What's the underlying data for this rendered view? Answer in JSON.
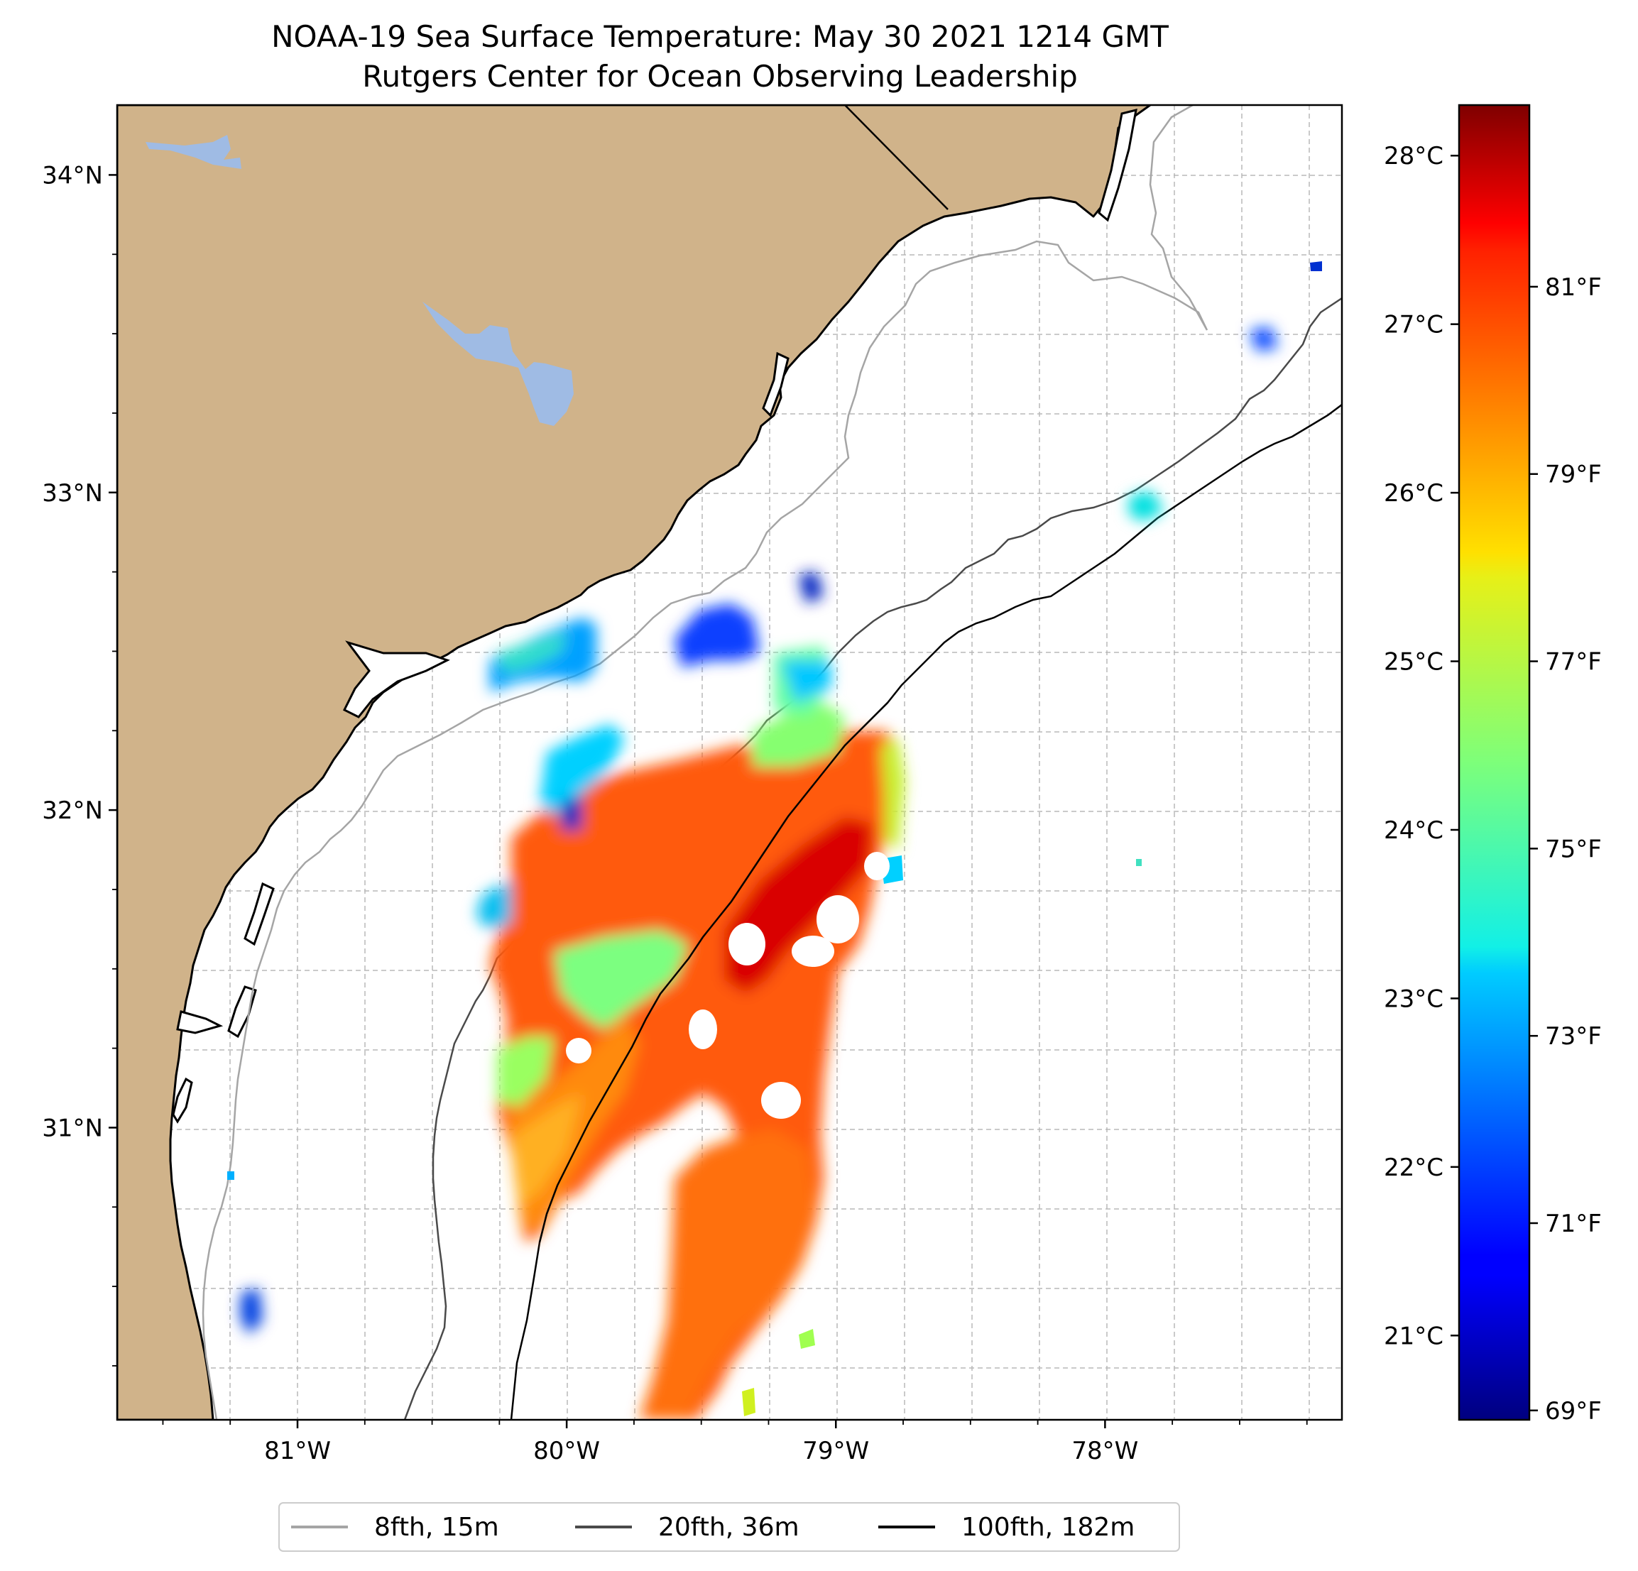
{
  "title": {
    "line1": "NOAA-19 Sea Surface Temperature: May 30 2021 1214 GMT",
    "line2": "Rutgers Center for Ocean Observing Leadership"
  },
  "map": {
    "lon_range": [
      -81.67,
      -77.12
    ],
    "lat_range": [
      30.08,
      34.22
    ],
    "lon_ticks": [
      {
        "value": -81,
        "label": "81°W"
      },
      {
        "value": -80,
        "label": "80°W"
      },
      {
        "value": -79,
        "label": "79°W"
      },
      {
        "value": -78,
        "label": "78°W"
      }
    ],
    "lat_ticks": [
      {
        "value": 31,
        "label": "31°N"
      },
      {
        "value": 32,
        "label": "32°N"
      },
      {
        "value": 33,
        "label": "33°N"
      },
      {
        "value": 34,
        "label": "34°N"
      }
    ],
    "gridlines": true,
    "colors": {
      "land": "#d0b38a",
      "water_body": "#9fbbe4",
      "coast": "#000000",
      "grid": "#b8b8b8"
    }
  },
  "colorbar": {
    "colormap": "jet",
    "range_c": [
      20.5,
      28.3
    ],
    "celsius_ticks": [
      {
        "value": 21,
        "label": "21°C"
      },
      {
        "value": 22,
        "label": "22°C"
      },
      {
        "value": 23,
        "label": "23°C"
      },
      {
        "value": 24,
        "label": "24°C"
      },
      {
        "value": 25,
        "label": "25°C"
      },
      {
        "value": 26,
        "label": "26°C"
      },
      {
        "value": 27,
        "label": "27°C"
      },
      {
        "value": 28,
        "label": "28°C"
      }
    ],
    "fahrenheit_ticks": [
      {
        "value": 69,
        "label": "69°F"
      },
      {
        "value": 71,
        "label": "71°F"
      },
      {
        "value": 73,
        "label": "73°F"
      },
      {
        "value": 75,
        "label": "75°F"
      },
      {
        "value": 77,
        "label": "77°F"
      },
      {
        "value": 79,
        "label": "79°F"
      },
      {
        "value": 81,
        "label": "81°F"
      }
    ]
  },
  "legend": {
    "placement": "bottom-center",
    "items": [
      {
        "label": "8fth, 15m",
        "color": "#a5a5a5"
      },
      {
        "label": "20fth, 36m",
        "color": "#4a4a4a"
      },
      {
        "label": "100fth, 182m",
        "color": "#000000"
      }
    ]
  }
}
